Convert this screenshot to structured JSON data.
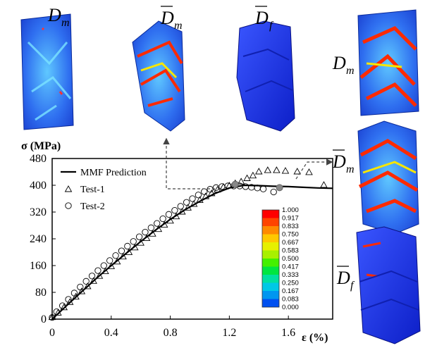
{
  "figure_labels": {
    "top_1": {
      "main": "D",
      "sub": "m",
      "bar": false
    },
    "top_2": {
      "main": "D",
      "sub": "m",
      "bar": true
    },
    "top_3": {
      "main": "D",
      "sub": "f",
      "bar": true
    },
    "side_1": {
      "main": "D",
      "sub": "m",
      "bar": false
    },
    "side_2": {
      "main": "D",
      "sub": "m",
      "bar": true
    },
    "side_3": {
      "main": "D",
      "sub": "f",
      "bar": true
    }
  },
  "colorbar": {
    "labels": [
      "1.000",
      "0.917",
      "0.833",
      "0.750",
      "0.667",
      "0.583",
      "0.500",
      "0.417",
      "0.333",
      "0.250",
      "0.167",
      "0.083",
      "0.000"
    ],
    "colors": [
      "#ff0000",
      "#ff4400",
      "#ff8a00",
      "#ffc800",
      "#e6f000",
      "#a8f000",
      "#44f000",
      "#00e640",
      "#00e0a0",
      "#00c8e6",
      "#0096f0",
      "#0050f0"
    ]
  },
  "chart_data": {
    "type": "line",
    "xlabel": "ε (%)",
    "ylabel": "σ (MPa)",
    "xlim": [
      0,
      1.9
    ],
    "ylim": [
      0,
      480
    ],
    "xticks": [
      "0",
      "0.4",
      "0.8",
      "1.2",
      "1.6"
    ],
    "yticks": [
      "0",
      "80",
      "160",
      "240",
      "320",
      "400",
      "480"
    ],
    "legend_position": "top-left",
    "series": [
      {
        "name": "MMF Prediction",
        "marker": "line",
        "x": [
          0,
          0.1,
          0.2,
          0.3,
          0.4,
          0.5,
          0.6,
          0.7,
          0.8,
          0.9,
          1.0,
          1.1,
          1.2,
          1.3,
          1.4,
          1.5,
          1.6,
          1.7,
          1.8,
          1.9
        ],
        "y": [
          0,
          41,
          82,
          122,
          160,
          196,
          232,
          266,
          298,
          327,
          352,
          375,
          392,
          400,
          399,
          397,
          396,
          394,
          392,
          391
        ]
      },
      {
        "name": "Test-1",
        "marker": "triangle",
        "x": [
          0,
          0.04,
          0.08,
          0.12,
          0.16,
          0.2,
          0.24,
          0.28,
          0.32,
          0.36,
          0.4,
          0.44,
          0.48,
          0.52,
          0.56,
          0.6,
          0.64,
          0.68,
          0.72,
          0.76,
          0.8,
          0.84,
          0.88,
          0.92,
          0.96,
          1.0,
          1.04,
          1.08,
          1.12,
          1.16,
          1.2,
          1.24,
          1.28,
          1.32,
          1.36,
          1.4,
          1.46,
          1.52,
          1.58,
          1.66,
          1.74,
          1.84
        ],
        "y": [
          5,
          18,
          34,
          50,
          66,
          82,
          97,
          113,
          128,
          142,
          157,
          171,
          186,
          199,
          213,
          227,
          241,
          254,
          268,
          281,
          293,
          306,
          320,
          332,
          343,
          355,
          366,
          375,
          386,
          394,
          398,
          405,
          410,
          420,
          428,
          440,
          444,
          444,
          442,
          440,
          438,
          400
        ]
      },
      {
        "name": "Test-2",
        "marker": "circle",
        "x": [
          0,
          0.03,
          0.07,
          0.11,
          0.15,
          0.19,
          0.23,
          0.27,
          0.31,
          0.35,
          0.39,
          0.43,
          0.47,
          0.51,
          0.55,
          0.59,
          0.63,
          0.67,
          0.71,
          0.75,
          0.79,
          0.83,
          0.87,
          0.91,
          0.95,
          0.99,
          1.03,
          1.07,
          1.11,
          1.15,
          1.19,
          1.23,
          1.27,
          1.31,
          1.35,
          1.39,
          1.43,
          1.5
        ],
        "y": [
          5,
          22,
          40,
          59,
          78,
          96,
          113,
          129,
          145,
          160,
          175,
          190,
          204,
          218,
          232,
          246,
          260,
          273,
          286,
          300,
          313,
          325,
          337,
          349,
          360,
          371,
          381,
          388,
          393,
          396,
          398,
          398,
          398,
          396,
          394,
          392,
          389,
          380
        ]
      }
    ],
    "markers": [
      {
        "x": 1.24,
        "y": 403
      },
      {
        "x": 1.54,
        "y": 393
      }
    ]
  }
}
